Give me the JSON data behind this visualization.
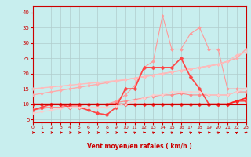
{
  "background_color": "#c8eeee",
  "grid_color": "#b0cccc",
  "x_label": "Vent moyen/en rafales ( km/h )",
  "x_ticks": [
    0,
    1,
    2,
    3,
    4,
    5,
    6,
    7,
    8,
    9,
    10,
    11,
    12,
    13,
    14,
    15,
    16,
    17,
    18,
    19,
    20,
    21,
    22,
    23
  ],
  "ylim": [
    4,
    42
  ],
  "xlim": [
    0,
    23
  ],
  "yticks": [
    5,
    10,
    15,
    20,
    25,
    30,
    35,
    40
  ],
  "lines": [
    {
      "color": "#ff9999",
      "linewidth": 0.8,
      "marker": "D",
      "markersize": 2.0,
      "y": [
        8,
        9,
        9,
        9,
        10,
        10,
        10,
        10,
        10,
        11,
        13,
        16,
        22,
        24,
        39,
        28,
        28,
        33,
        35,
        28,
        28,
        15,
        15,
        15
      ]
    },
    {
      "color": "#ffaaaa",
      "linewidth": 1.0,
      "marker": "D",
      "markersize": 2.0,
      "y": [
        13,
        13.5,
        14,
        14.5,
        15,
        15.5,
        16,
        16.5,
        17,
        17.5,
        18,
        18.5,
        19,
        19.5,
        20,
        20.5,
        21,
        21.5,
        22,
        22.5,
        23,
        24,
        25,
        28
      ]
    },
    {
      "color": "#ffbbbb",
      "linewidth": 1.0,
      "marker": "D",
      "markersize": 2.0,
      "y": [
        15,
        15.3,
        15.6,
        15.9,
        16.2,
        16.5,
        16.8,
        17.1,
        17.4,
        17.7,
        18,
        18.5,
        19,
        19.5,
        20,
        20.5,
        21,
        21.5,
        22,
        22.5,
        23,
        24,
        26,
        27
      ]
    },
    {
      "color": "#ff8888",
      "linewidth": 0.8,
      "marker": "D",
      "markersize": 2.0,
      "y": [
        8,
        8.5,
        9,
        9,
        9.5,
        9.5,
        10,
        10,
        10,
        10.5,
        11,
        11.5,
        12,
        12.5,
        13,
        13,
        13.5,
        13,
        13,
        13,
        13,
        13,
        14,
        14
      ]
    },
    {
      "color": "#ff4444",
      "linewidth": 1.2,
      "marker": "D",
      "markersize": 2.5,
      "y": [
        8,
        9,
        10,
        10,
        9,
        9,
        8,
        7,
        6.5,
        9,
        15,
        15,
        22,
        22,
        22,
        22,
        25,
        19,
        15,
        10,
        10,
        10,
        11,
        11
      ]
    },
    {
      "color": "#ff2222",
      "linewidth": 1.2,
      "marker": "D",
      "markersize": 2.5,
      "y": [
        10,
        10,
        10,
        10,
        10,
        10,
        10,
        10,
        10,
        10,
        10,
        10,
        10,
        10,
        10,
        10,
        10,
        10,
        10,
        10,
        10,
        10,
        11,
        12
      ]
    },
    {
      "color": "#cc0000",
      "linewidth": 1.5,
      "marker": null,
      "markersize": 0,
      "y": [
        10,
        10,
        10,
        10,
        10,
        10,
        10,
        10,
        10,
        10,
        10,
        10,
        10,
        10,
        10,
        10,
        10,
        10,
        10,
        10,
        10,
        10,
        10,
        10
      ]
    },
    {
      "color": "#ffcccc",
      "linewidth": 0.8,
      "marker": "D",
      "markersize": 1.8,
      "y": [
        7,
        7.5,
        8,
        8.5,
        9,
        9,
        9,
        9,
        9,
        9.5,
        10,
        11,
        12,
        13,
        13,
        14,
        14,
        14,
        14,
        13,
        13,
        13,
        14,
        15
      ]
    }
  ],
  "arrow_color": "#cc0000",
  "arrow_angles": [
    0,
    0,
    0,
    0,
    0,
    0,
    0,
    0,
    0,
    0,
    30,
    30,
    30,
    30,
    30,
    30,
    30,
    30,
    30,
    30,
    30,
    30,
    45,
    45
  ]
}
